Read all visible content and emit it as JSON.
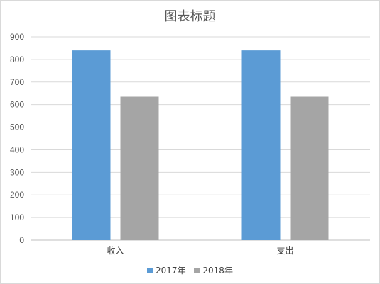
{
  "chart_data": {
    "type": "bar",
    "title": "图表标题",
    "categories": [
      "收入",
      "支出"
    ],
    "series": [
      {
        "name": "2017年",
        "values": [
          840,
          840
        ],
        "color": "#5b9bd5"
      },
      {
        "name": "2018年",
        "values": [
          635,
          635
        ],
        "color": "#a5a5a5"
      }
    ],
    "ylim": [
      0,
      900
    ],
    "yticks": [
      "0",
      "100",
      "200",
      "300",
      "400",
      "500",
      "600",
      "700",
      "800",
      "900"
    ],
    "grid": true,
    "legend_position": "bottom"
  }
}
